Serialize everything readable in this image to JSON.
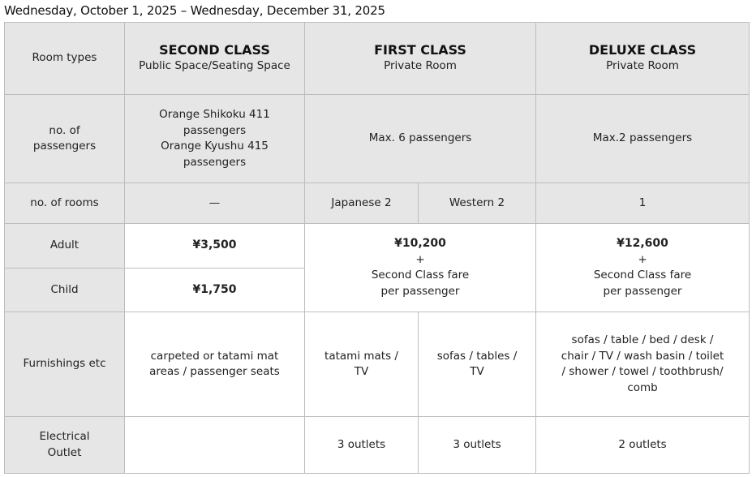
{
  "title": "Wednesday, October 1, 2025 – Wednesday, December 31, 2025",
  "rows": {
    "room_types": "Room types",
    "passengers": "no. of passengers",
    "rooms": "no. of rooms",
    "adult": "Adult",
    "child": "Child",
    "furnishings": "Furnishings etc",
    "outlet": "Electrical Outlet"
  },
  "second": {
    "name": "SECOND CLASS",
    "sub": "Public Space/Seating Space",
    "passengers_1": "Orange Shikoku 411 passengers",
    "passengers_2": "Orange Kyushu 415 passengers",
    "rooms": "—",
    "adult": "¥3,500",
    "child": "¥1,750",
    "furnishings": "carpeted or tatami mat areas / passenger seats",
    "outlet": ""
  },
  "first": {
    "name": "FIRST CLASS",
    "sub": "Private Room",
    "passengers": "Max. 6 passengers",
    "rooms_japanese": "Japanese 2",
    "rooms_western": "Western 2",
    "fare": "¥10,200",
    "plus": "+",
    "fare_note": "Second Class fare per passenger",
    "furn_japanese": "tatami mats / TV",
    "furn_western": "sofas / tables / TV",
    "outlet_japanese": "3 outlets",
    "outlet_western": "3 outlets"
  },
  "deluxe": {
    "name": "DELUXE CLASS",
    "sub": "Private Room",
    "passengers": "Max.2 passengers",
    "rooms": "1",
    "fare": "¥12,600",
    "plus": "+",
    "fare_note": "Second Class fare per passenger",
    "furnishings": "sofas / table / bed / desk / chair / TV / wash basin / toilet / shower / towel / toothbrush/ comb",
    "outlet": "2 outlets"
  }
}
